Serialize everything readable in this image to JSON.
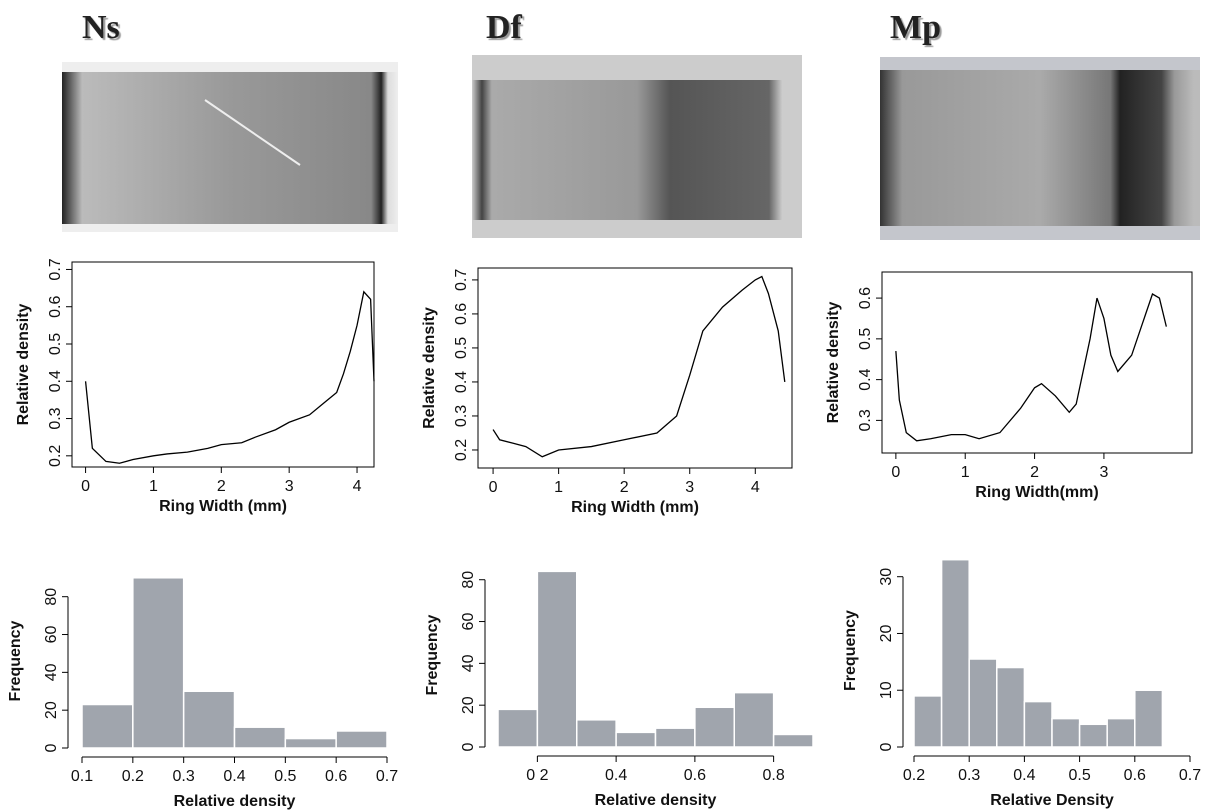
{
  "chart_data": [
    {
      "type": "line",
      "title": "Ns",
      "x_label": "Ring Width (mm)",
      "y_label": "Relative density",
      "color": "#000000",
      "x": [
        0,
        0.1,
        0.3,
        0.5,
        0.7,
        1,
        1.2,
        1.5,
        1.8,
        2,
        2.3,
        2.5,
        2.8,
        3,
        3.3,
        3.5,
        3.7,
        3.8,
        3.9,
        4,
        4.1,
        4.2,
        4.25
      ],
      "values": [
        0.4,
        0.22,
        0.185,
        0.18,
        0.19,
        0.2,
        0.205,
        0.21,
        0.22,
        0.23,
        0.235,
        0.25,
        0.27,
        0.29,
        0.31,
        0.34,
        0.37,
        0.42,
        0.48,
        0.55,
        0.64,
        0.62,
        0.4
      ],
      "xlim": [
        -0.2,
        4.25
      ],
      "ylim": [
        0.17,
        0.72
      ],
      "xticks": [
        0,
        1,
        2,
        3,
        4
      ],
      "yticks": [
        0.2,
        0.3,
        0.4,
        0.5,
        0.6,
        0.7
      ]
    },
    {
      "type": "line",
      "title": "Df",
      "x_label": "Ring Width (mm)",
      "y_label": "Relative density",
      "color": "#000000",
      "x": [
        0,
        0.1,
        0.3,
        0.5,
        0.75,
        1,
        1.5,
        2,
        2.5,
        2.8,
        3,
        3.2,
        3.5,
        3.8,
        4,
        4.1,
        4.2,
        4.35,
        4.45
      ],
      "values": [
        0.26,
        0.23,
        0.22,
        0.21,
        0.18,
        0.2,
        0.21,
        0.23,
        0.25,
        0.3,
        0.42,
        0.55,
        0.62,
        0.67,
        0.7,
        0.71,
        0.66,
        0.55,
        0.4
      ],
      "xlim": [
        -0.23,
        4.56
      ],
      "ylim": [
        0.147,
        0.735
      ],
      "xticks": [
        0,
        1,
        2,
        3,
        4
      ],
      "yticks": [
        0.2,
        0.3,
        0.4,
        0.5,
        0.6,
        0.7
      ]
    },
    {
      "type": "line",
      "title": "Mp",
      "x_label": "Ring Width(mm)",
      "y_label": "Relative density",
      "color": "#000000",
      "x": [
        0,
        0.05,
        0.15,
        0.3,
        0.5,
        0.8,
        1,
        1.2,
        1.5,
        1.8,
        2,
        2.1,
        2.3,
        2.5,
        2.6,
        2.8,
        2.9,
        3,
        3.1,
        3.2,
        3.4,
        3.6,
        3.7,
        3.8,
        3.9
      ],
      "values": [
        0.47,
        0.35,
        0.27,
        0.25,
        0.255,
        0.265,
        0.265,
        0.255,
        0.27,
        0.33,
        0.38,
        0.39,
        0.36,
        0.32,
        0.34,
        0.5,
        0.6,
        0.55,
        0.46,
        0.42,
        0.46,
        0.56,
        0.61,
        0.6,
        0.53
      ],
      "xlim": [
        -0.2,
        4.27
      ],
      "ylim": [
        0.22,
        0.664
      ],
      "xticks": [
        0,
        1,
        2,
        3
      ],
      "yticks": [
        0.3,
        0.4,
        0.5,
        0.6
      ]
    },
    {
      "type": "histogram",
      "x_label": "Relative density",
      "y_label": "Frequency",
      "color": "#a0a5ad",
      "bins": [
        0.1,
        0.2,
        0.3,
        0.4,
        0.5,
        0.6,
        0.7
      ],
      "values": [
        23,
        90,
        30,
        11,
        5,
        9
      ],
      "xlim": [
        0.1,
        0.7
      ],
      "ylim": [
        0,
        92
      ],
      "xticks": [
        0.1,
        0.2,
        0.3,
        0.4,
        0.5,
        0.6,
        0.7
      ],
      "yticks": [
        0,
        20,
        40,
        60,
        80
      ]
    },
    {
      "type": "histogram",
      "x_label": "Relative density",
      "y_label": "Frequency",
      "color": "#a0a5ad",
      "bins": [
        0.1,
        0.2,
        0.3,
        0.4,
        0.5,
        0.6,
        0.7,
        0.8,
        0.9
      ],
      "values": [
        18,
        84,
        13,
        7,
        9,
        19,
        26,
        6
      ],
      "xlim": [
        0.1,
        0.9
      ],
      "ylim": [
        0,
        88
      ],
      "xticks": [
        {
          "value": 0.2,
          "label": "0 2"
        },
        0.4,
        0.6,
        0.8
      ],
      "yticks": [
        0,
        20,
        40,
        60,
        80
      ]
    },
    {
      "type": "histogram",
      "x_label": "Relative Density",
      "y_label": "Frequency",
      "color": "#a0a5ad",
      "bins": [
        0.2,
        0.25,
        0.3,
        0.35,
        0.4,
        0.45,
        0.5,
        0.55,
        0.6,
        0.65
      ],
      "values": [
        9,
        33,
        15.5,
        14,
        8,
        5,
        4,
        5,
        10
      ],
      "xlim": [
        0.2,
        0.7
      ],
      "ylim": [
        0,
        34
      ],
      "xticks": [
        0.2,
        0.3,
        0.4,
        0.5,
        0.6,
        0.7
      ],
      "yticks": [
        0,
        10,
        20,
        30
      ]
    }
  ]
}
